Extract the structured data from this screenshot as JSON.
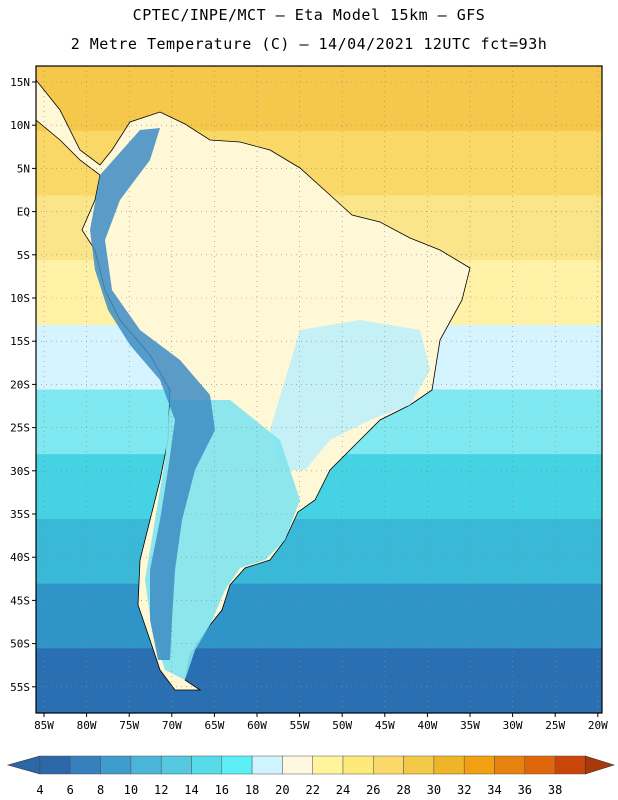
{
  "header": {
    "line1": "CPTEC/INPE/MCT –  Eta Model 15km – GFS",
    "line2": "2 Metre Temperature (C) – 14/04/2021 12UTC fct=93h"
  },
  "map": {
    "lat_labels": [
      "15N",
      "10N",
      "5N",
      "EQ",
      "5S",
      "10S",
      "15S",
      "20S",
      "25S",
      "30S",
      "35S",
      "40S",
      "45S",
      "50S",
      "55S"
    ],
    "lon_labels": [
      "85W",
      "80W",
      "75W",
      "70W",
      "65W",
      "60W",
      "55W",
      "50W",
      "45W",
      "40W",
      "35W",
      "30W",
      "25W",
      "20W"
    ],
    "ocean_bands": [
      {
        "color": "#f5c84c"
      },
      {
        "color": "#f9d868"
      },
      {
        "color": "#fbe58a"
      },
      {
        "color": "#fff2a6"
      },
      {
        "color": "#d5f4ff"
      },
      {
        "color": "#7fe8f0"
      },
      {
        "color": "#45d3e4"
      },
      {
        "color": "#3ab8d8"
      },
      {
        "color": "#2f95c8"
      },
      {
        "color": "#2b6fb3"
      }
    ],
    "land_colors": {
      "tropical": "#fff8d6",
      "highland": "#bfeef8",
      "andes": "#3d8cc4",
      "south": "#4fb0d6"
    }
  },
  "colorbar": {
    "labels": [
      "4",
      "6",
      "8",
      "10",
      "12",
      "14",
      "16",
      "18",
      "20",
      "22",
      "24",
      "26",
      "28",
      "30",
      "32",
      "34",
      "36",
      "38"
    ],
    "colors": [
      "#2c67a8",
      "#3580bd",
      "#3f9ccd",
      "#4ab5d8",
      "#55c8e0",
      "#58dbe8",
      "#5cf0f6",
      "#cff4ff",
      "#fff8e0",
      "#fff49c",
      "#fde87a",
      "#fbd86a",
      "#f4c94a",
      "#f0b428",
      "#f2a012",
      "#e8820e",
      "#e0660c",
      "#c9450a",
      "#a83a0a"
    ]
  }
}
